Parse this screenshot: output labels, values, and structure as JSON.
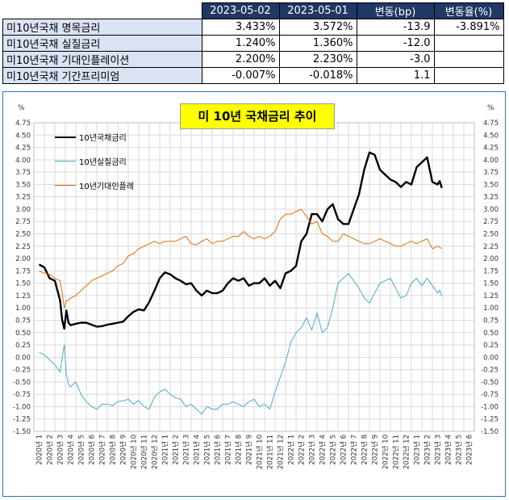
{
  "table": {
    "headers": [
      "",
      "2023-05-02",
      "2023-05-01",
      "변동(bp)",
      "변동율(%)"
    ],
    "rows": [
      {
        "label": "미10년국채 명목금리",
        "v1": "3.433%",
        "v2": "3.572%",
        "bp": "-13.9",
        "pct": "-3.891%"
      },
      {
        "label": "미10년국채 실질금리",
        "v1": "1.240%",
        "v2": "1.360%",
        "bp": "-12.0",
        "pct": ""
      },
      {
        "label": "미10년국채 기대인플레이션",
        "v1": "2.200%",
        "v2": "2.230%",
        "bp": "-3.0",
        "pct": ""
      },
      {
        "label": "미10년국채 기간프리미엄",
        "v1": "-0.007%",
        "v2": "-0.018%",
        "bp": "1.1",
        "pct": ""
      }
    ]
  },
  "chart_data": {
    "type": "line",
    "title": "미 10년  국채금리  추이",
    "ylabel_left": "%",
    "ylabel_right": "%",
    "ylim": [
      -1.5,
      4.75
    ],
    "ytick_step": 0.25,
    "grid": true,
    "legend_position": "top-left",
    "x_labels": [
      "2020년 1",
      "2020년 2",
      "2020년 3",
      "2020년 4",
      "2020년 5",
      "2020년 6",
      "2020년 7",
      "2020년 8",
      "2020년 9",
      "2020년 10",
      "2020년 11",
      "2020년 12",
      "2021년 1",
      "2021년 2",
      "2021년 3",
      "2021년 4",
      "2021년 5",
      "2021년 6",
      "2021년 7",
      "2021년 8",
      "2021년 9",
      "2021년 10",
      "2021년 11",
      "2021년 12",
      "2022년 1",
      "2022년 2",
      "2022년 3",
      "2022년 4",
      "2022년 5",
      "2022년 6",
      "2022년 7",
      "2022년 8",
      "2022년 9",
      "2022년 10",
      "2022년 11",
      "2022년 12",
      "2023년 1",
      "2023년 2",
      "2023년 3",
      "2023년 4",
      "2023년 5",
      "2023년 6"
    ],
    "x": [
      0,
      0.5,
      1,
      1.5,
      2,
      2.2,
      2.4,
      2.6,
      2.8,
      3,
      3.5,
      4,
      4.5,
      5,
      5.5,
      6,
      6.5,
      7,
      7.5,
      8,
      8.5,
      9,
      9.5,
      10,
      10.5,
      11,
      11.5,
      12,
      12.5,
      13,
      13.5,
      14,
      14.5,
      15,
      15.5,
      16,
      16.5,
      17,
      17.5,
      18,
      18.5,
      19,
      19.5,
      20,
      20.5,
      21,
      21.5,
      22,
      22.5,
      23,
      23.5,
      24,
      24.5,
      25,
      25.5,
      26,
      26.5,
      27,
      27.5,
      28,
      28.5,
      29,
      29.5,
      30,
      30.5,
      31,
      31.5,
      32,
      32.5,
      33,
      33.5,
      34,
      34.5,
      35,
      35.5,
      36,
      36.5,
      37,
      37.5,
      38,
      38.2,
      38.4
    ],
    "series": [
      {
        "name": "10년국채금리",
        "color": "#000000",
        "values": [
          1.88,
          1.82,
          1.6,
          1.55,
          1.15,
          0.75,
          0.58,
          0.95,
          0.7,
          0.65,
          0.68,
          0.7,
          0.7,
          0.66,
          0.62,
          0.63,
          0.66,
          0.68,
          0.7,
          0.72,
          0.83,
          0.92,
          0.97,
          0.95,
          1.12,
          1.35,
          1.6,
          1.72,
          1.68,
          1.6,
          1.55,
          1.48,
          1.5,
          1.35,
          1.25,
          1.35,
          1.3,
          1.3,
          1.35,
          1.5,
          1.6,
          1.55,
          1.6,
          1.45,
          1.5,
          1.5,
          1.6,
          1.45,
          1.55,
          1.4,
          1.7,
          1.75,
          1.85,
          2.35,
          2.5,
          2.9,
          2.9,
          2.75,
          3.0,
          3.1,
          2.8,
          2.7,
          2.7,
          3.0,
          3.3,
          3.8,
          4.15,
          4.1,
          3.8,
          3.7,
          3.6,
          3.55,
          3.45,
          3.55,
          3.5,
          3.85,
          3.95,
          4.05,
          3.55,
          3.5,
          3.57,
          3.43
        ]
      },
      {
        "name": "10년실질금리",
        "color": "#4bacc6",
        "values": [
          0.1,
          0.05,
          -0.05,
          -0.15,
          -0.3,
          0.0,
          0.25,
          -0.35,
          -0.55,
          -0.6,
          -0.5,
          -0.75,
          -0.9,
          -1.0,
          -1.05,
          -0.95,
          -0.95,
          -0.98,
          -0.9,
          -0.88,
          -0.85,
          -0.95,
          -0.88,
          -1.0,
          -1.05,
          -0.8,
          -0.7,
          -0.65,
          -0.75,
          -0.82,
          -0.85,
          -1.0,
          -0.95,
          -1.05,
          -1.15,
          -1.0,
          -1.05,
          -1.05,
          -0.95,
          -0.95,
          -0.9,
          -0.95,
          -1.0,
          -0.9,
          -0.85,
          -1.0,
          -0.95,
          -1.05,
          -0.7,
          -0.4,
          -0.1,
          0.3,
          0.5,
          0.6,
          0.8,
          0.55,
          0.9,
          0.5,
          0.6,
          1.0,
          1.5,
          1.6,
          1.7,
          1.55,
          1.4,
          1.2,
          1.1,
          1.3,
          1.5,
          1.55,
          1.6,
          1.4,
          1.2,
          1.25,
          1.5,
          1.6,
          1.45,
          1.6,
          1.45,
          1.3,
          1.36,
          1.24
        ]
      },
      {
        "name": "10년기대인플레",
        "color": "#e46c0a",
        "values": [
          1.75,
          1.7,
          1.68,
          1.6,
          1.55,
          1.3,
          1.0,
          1.15,
          1.15,
          1.2,
          1.25,
          1.35,
          1.45,
          1.55,
          1.6,
          1.65,
          1.7,
          1.75,
          1.85,
          1.9,
          2.05,
          2.1,
          2.2,
          2.25,
          2.3,
          2.35,
          2.3,
          2.35,
          2.35,
          2.35,
          2.4,
          2.45,
          2.3,
          2.28,
          2.35,
          2.4,
          2.3,
          2.35,
          2.35,
          2.4,
          2.45,
          2.45,
          2.55,
          2.45,
          2.4,
          2.45,
          2.4,
          2.45,
          2.55,
          2.8,
          2.9,
          2.9,
          2.95,
          3.0,
          2.85,
          2.7,
          2.75,
          2.5,
          2.45,
          2.35,
          2.35,
          2.5,
          2.45,
          2.4,
          2.35,
          2.3,
          2.3,
          2.35,
          2.4,
          2.35,
          2.3,
          2.25,
          2.25,
          2.3,
          2.35,
          2.3,
          2.35,
          2.4,
          2.2,
          2.25,
          2.23,
          2.2
        ]
      }
    ]
  }
}
